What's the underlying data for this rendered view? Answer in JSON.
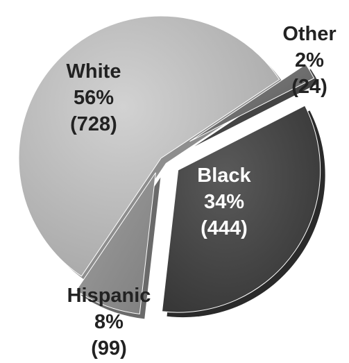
{
  "chart_data": {
    "type": "pie",
    "title": "",
    "slices": [
      {
        "name": "White",
        "percent_label": "56%",
        "count_label": "(728)",
        "value": 728,
        "color": "#b4b4b4",
        "text_color": "#222222"
      },
      {
        "name": "Other",
        "percent_label": "2%",
        "count_label": "(24)",
        "value": 24,
        "color": "#6b6b6b",
        "text_color": "#222222"
      },
      {
        "name": "Black",
        "percent_label": "34%",
        "count_label": "(444)",
        "value": 444,
        "color": "#4a4a4a",
        "text_color": "#ffffff"
      },
      {
        "name": "Hispanic",
        "percent_label": "8%",
        "count_label": "(99)",
        "value": 99,
        "color": "#8c8c8c",
        "text_color": "#222222"
      }
    ],
    "legend": "none",
    "exploded": true
  }
}
